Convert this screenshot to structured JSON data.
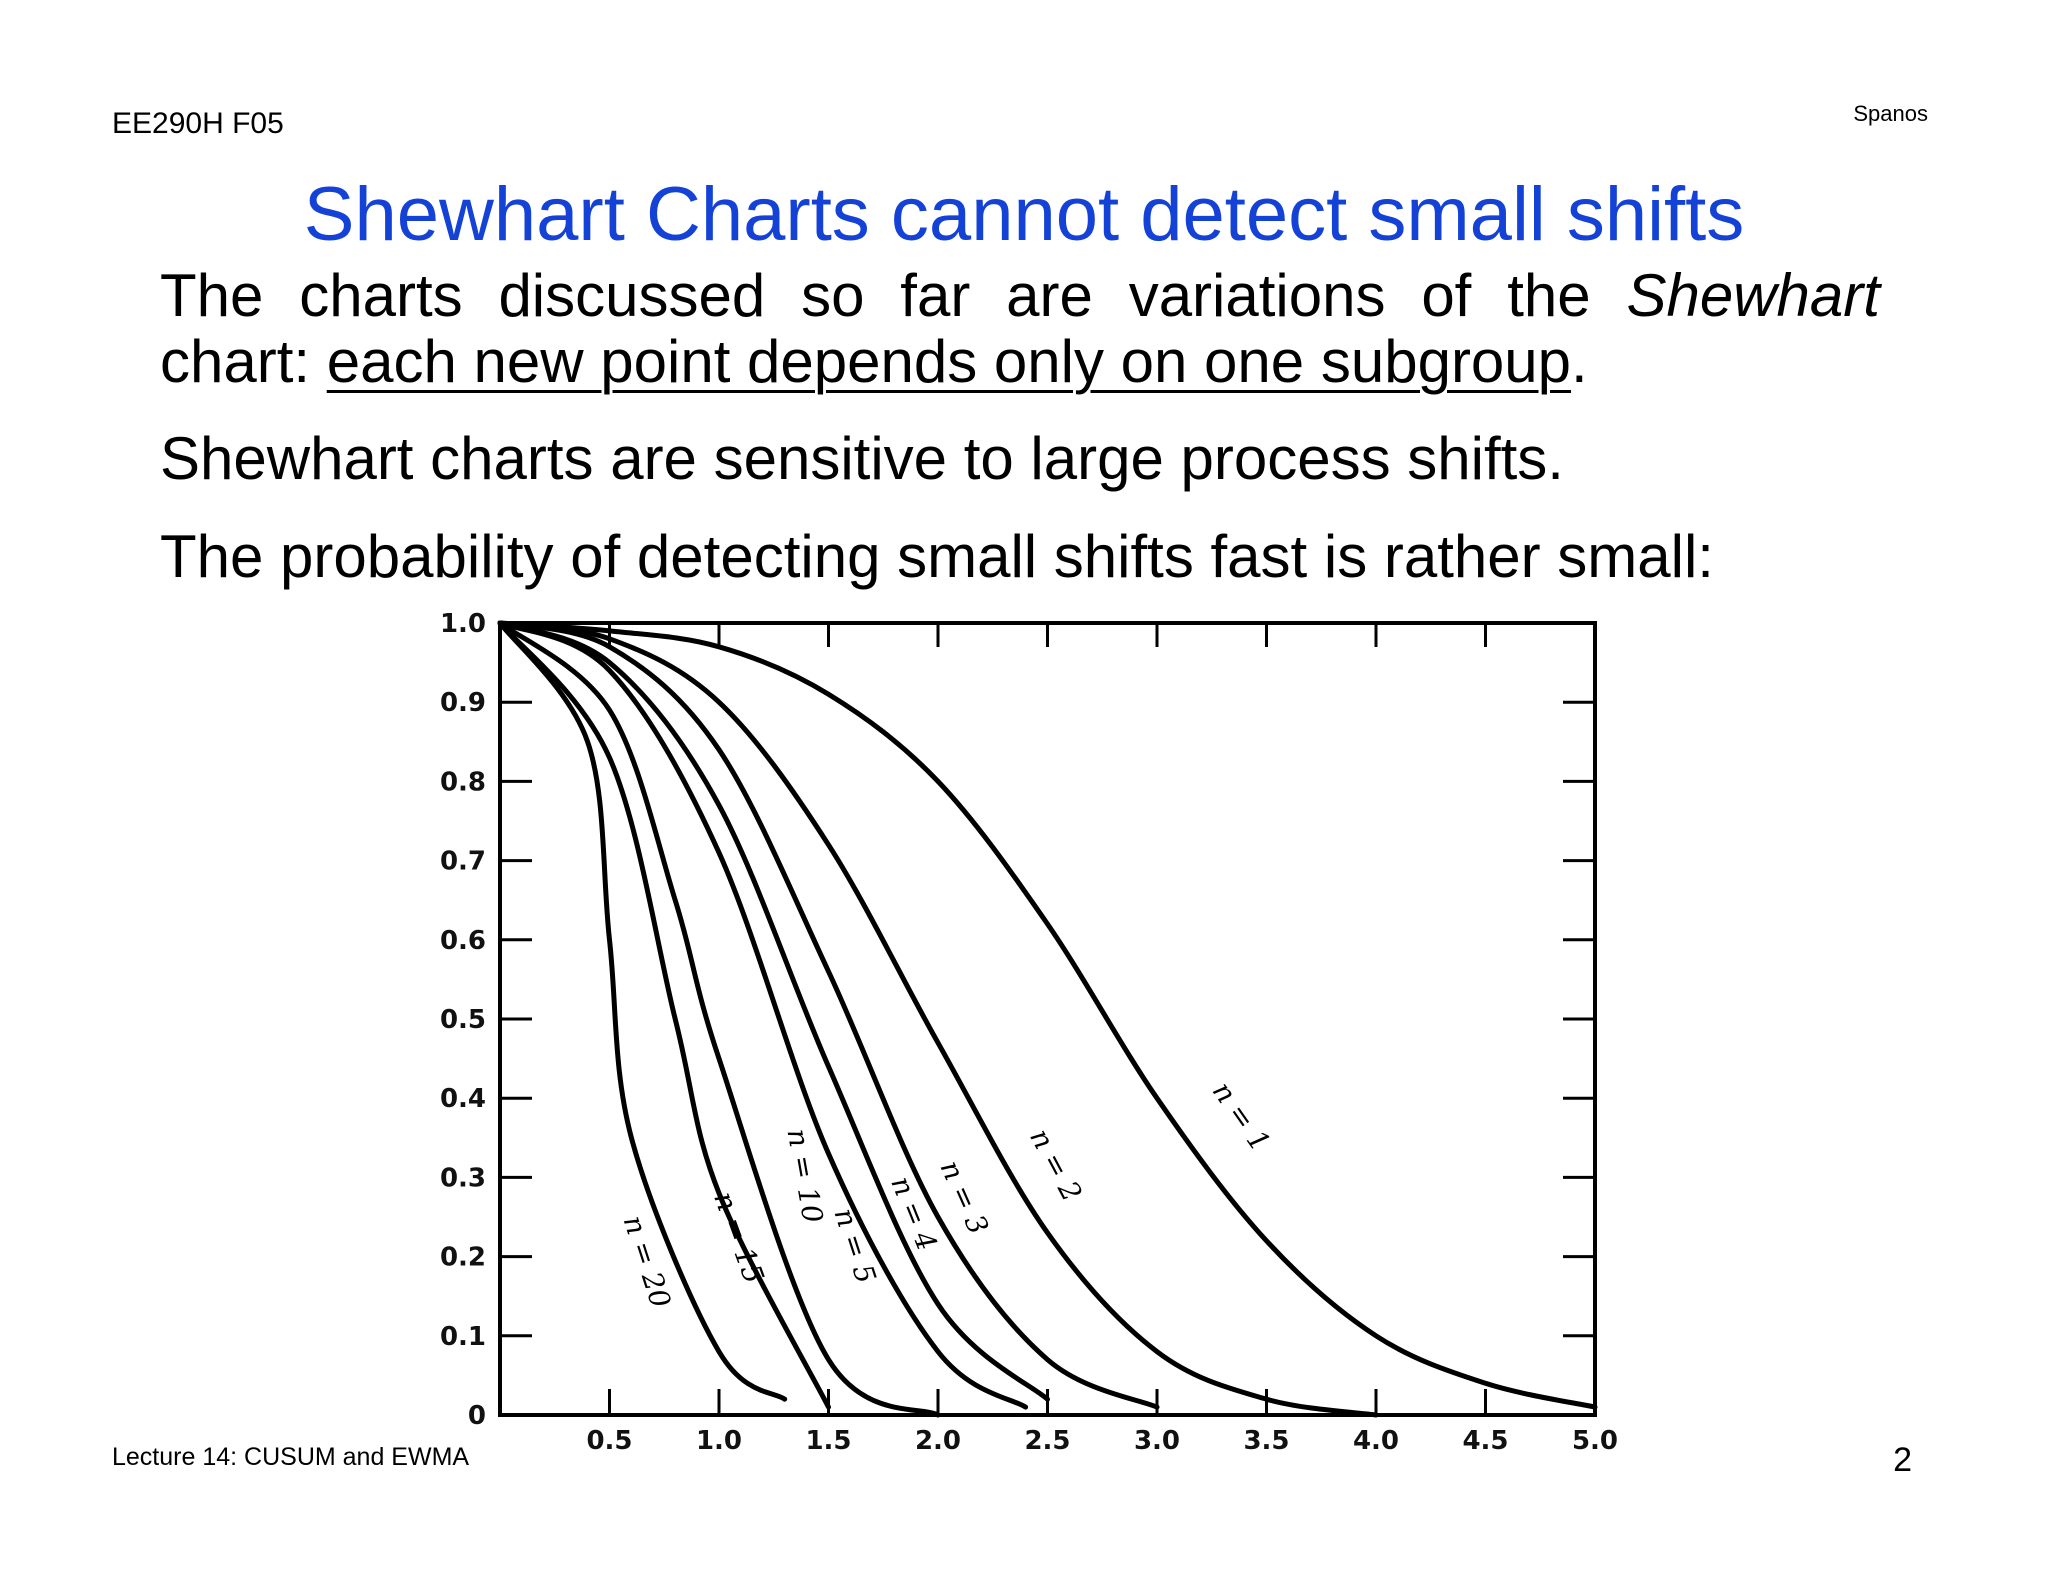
{
  "header": {
    "course": "EE290H F05",
    "author": "Spanos"
  },
  "title": "Shewhart Charts cannot detect small shifts",
  "body": {
    "p1_words": [
      "The",
      "charts",
      "discussed",
      "so",
      "far",
      "are",
      "variations",
      "of",
      "the"
    ],
    "p1_italic": "Shewhart",
    "p1_line2_prefix": "chart: ",
    "p1_line2_underlined": "each new point depends only on one subgroup",
    "p1_line2_suffix": ".",
    "p2": "Shewhart charts are sensitive to large process shifts.",
    "p3": "The probability of detecting small shifts fast is rather small:"
  },
  "footer": {
    "lecture": "Lecture 14: CUSUM and EWMA",
    "page_number": "2"
  },
  "chart_data": {
    "type": "line",
    "title": "",
    "xlabel": "",
    "ylabel": "",
    "xlim": [
      0,
      5.0
    ],
    "ylim": [
      0,
      1.0
    ],
    "grid": false,
    "x_tick_labels": [
      "0.5",
      "1.0",
      "1.5",
      "2.0",
      "2.5",
      "3.0",
      "3.5",
      "4.0",
      "4.5",
      "5.0"
    ],
    "y_tick_labels": [
      "0",
      "0.1",
      "0.2",
      "0.3",
      "0.4",
      "0.5",
      "0.6",
      "0.7",
      "0.8",
      "0.9",
      "1.0"
    ],
    "series": [
      {
        "name": "n = 1",
        "x": [
          0,
          0.5,
          1.0,
          1.5,
          2.0,
          2.5,
          3.0,
          3.5,
          4.0,
          4.5,
          5.0
        ],
        "y": [
          1.0,
          0.99,
          0.97,
          0.91,
          0.8,
          0.62,
          0.4,
          0.22,
          0.1,
          0.04,
          0.01
        ]
      },
      {
        "name": "n = 2",
        "x": [
          0,
          0.5,
          1.0,
          1.5,
          2.0,
          2.5,
          3.0,
          3.5,
          4.0
        ],
        "y": [
          1.0,
          0.98,
          0.9,
          0.72,
          0.47,
          0.23,
          0.08,
          0.02,
          0.0
        ]
      },
      {
        "name": "n = 3",
        "x": [
          0,
          0.5,
          1.0,
          1.5,
          2.0,
          2.5,
          3.0
        ],
        "y": [
          1.0,
          0.97,
          0.84,
          0.56,
          0.25,
          0.07,
          0.01
        ]
      },
      {
        "name": "n = 4",
        "x": [
          0,
          0.5,
          1.0,
          1.5,
          2.0,
          2.5
        ],
        "y": [
          1.0,
          0.95,
          0.77,
          0.44,
          0.14,
          0.02
        ]
      },
      {
        "name": "n = 5",
        "x": [
          0,
          0.5,
          1.0,
          1.5,
          2.0,
          2.4
        ],
        "y": [
          1.0,
          0.94,
          0.71,
          0.33,
          0.08,
          0.01
        ]
      },
      {
        "name": "n = 10",
        "x": [
          0,
          0.5,
          0.8,
          1.0,
          1.5,
          2.0
        ],
        "y": [
          1.0,
          0.89,
          0.65,
          0.45,
          0.07,
          0.0
        ]
      },
      {
        "name": "n = 15",
        "x": [
          0,
          0.5,
          0.8,
          1.0,
          1.5
        ],
        "y": [
          1.0,
          0.83,
          0.5,
          0.28,
          0.01
        ]
      },
      {
        "name": "n = 20",
        "x": [
          0,
          0.4,
          0.5,
          0.6,
          1.0,
          1.3
        ],
        "y": [
          1.0,
          0.85,
          0.6,
          0.35,
          0.08,
          0.02
        ]
      }
    ]
  }
}
